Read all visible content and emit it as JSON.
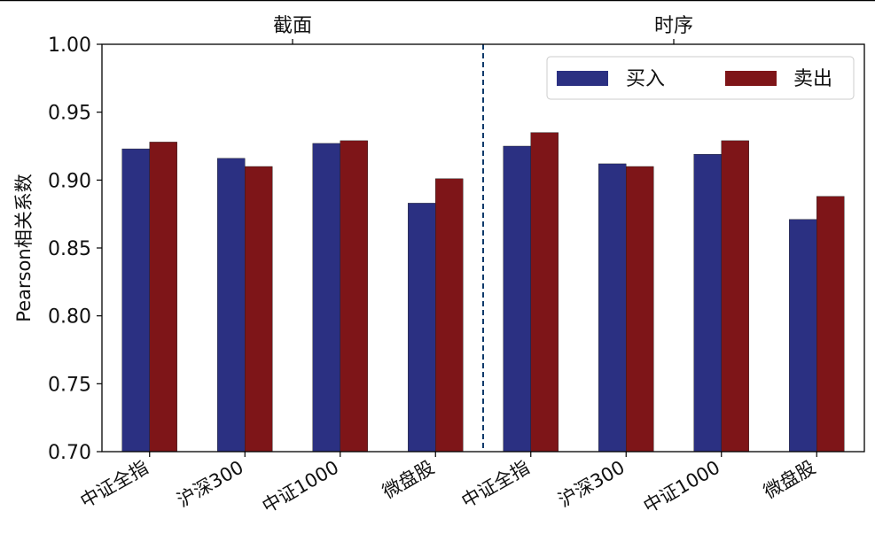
{
  "chart_data": {
    "type": "bar",
    "ylabel": "Pearson相关系数",
    "ylim": [
      0.7,
      1.0
    ],
    "yticks": [
      "0.70",
      "0.75",
      "0.80",
      "0.85",
      "0.90",
      "0.95",
      "1.00"
    ],
    "ytick_values": [
      0.7,
      0.75,
      0.8,
      0.85,
      0.9,
      0.95,
      1.0
    ],
    "groups": [
      "截面",
      "时序"
    ],
    "categories": [
      "中证全指",
      "沪深300",
      "中证1000",
      "微盘股",
      "中证全指",
      "沪深300",
      "中证1000",
      "微盘股"
    ],
    "series": [
      {
        "name": "买入",
        "color": "#2b3082",
        "values": [
          0.923,
          0.916,
          0.927,
          0.883,
          0.925,
          0.912,
          0.919,
          0.871
        ]
      },
      {
        "name": "卖出",
        "color": "#7e1518",
        "values": [
          0.928,
          0.91,
          0.929,
          0.901,
          0.935,
          0.91,
          0.929,
          0.888
        ]
      }
    ],
    "divider_after_category": 4,
    "divider_color": "#0e3a6b",
    "grid": false,
    "legend_position": "top-right"
  }
}
